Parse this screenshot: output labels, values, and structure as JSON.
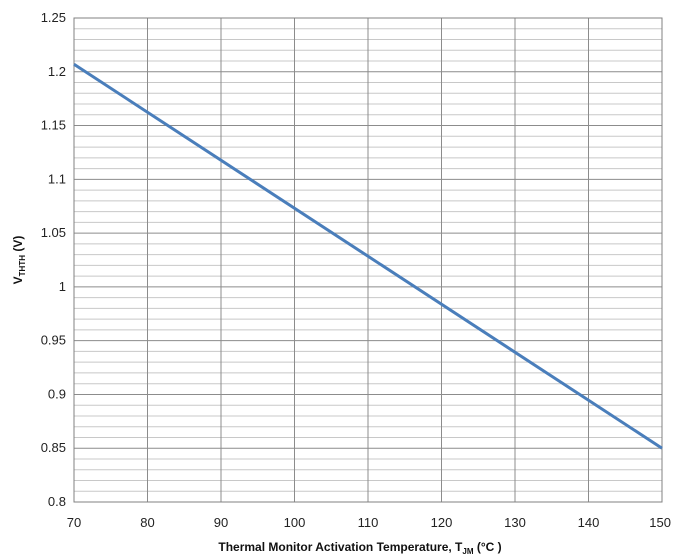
{
  "chart_data": {
    "type": "line",
    "title": "",
    "xlabel": {
      "main": "Thermal Monitor Activation Temperature, T",
      "sub": "JM",
      "suffix": " (°C )"
    },
    "ylabel": {
      "main": "V",
      "sub": "THTH",
      "suffix": " (V)"
    },
    "xlim": [
      70,
      150
    ],
    "ylim": [
      0.8,
      1.25
    ],
    "x_ticks": [
      70,
      80,
      90,
      100,
      110,
      120,
      130,
      140,
      150
    ],
    "x_tick_labels": [
      "70",
      "80",
      "90",
      "100",
      "110",
      "120",
      "130",
      "140",
      "150"
    ],
    "y_ticks": [
      0.8,
      0.85,
      0.9,
      0.95,
      1.0,
      1.05,
      1.1,
      1.15,
      1.2,
      1.25
    ],
    "y_tick_labels": [
      "0.8",
      "0.85",
      "0.9",
      "0.95",
      "1",
      "1.05",
      "1.1",
      "1.15",
      "1.2",
      "1.25"
    ],
    "y_minor_step": 0.01,
    "grid": true,
    "legend": "none",
    "series": [
      {
        "color": "#4a7ebb",
        "x": [
          70,
          150
        ],
        "y": [
          1.207,
          0.85
        ]
      }
    ],
    "colors": {
      "major_grid": "#8c8c8c",
      "minor_grid": "#c8c8c8",
      "axis": "#808080",
      "line": "#4a7ebb"
    }
  }
}
